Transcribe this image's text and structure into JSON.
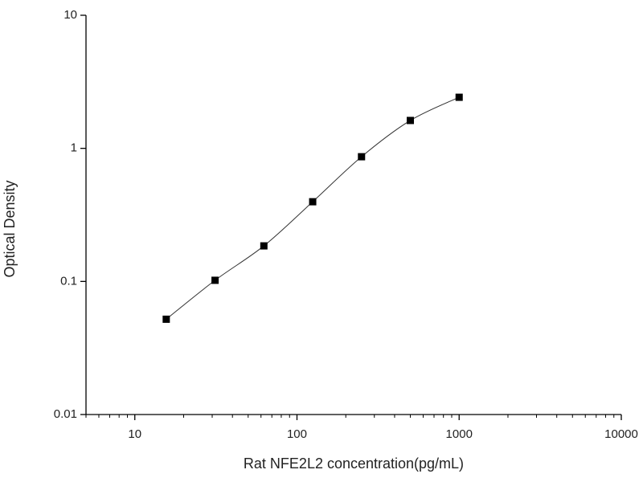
{
  "chart_data": {
    "type": "scatter",
    "x_label": "Rat NFE2L2 concentration(pg/mL)",
    "y_label": "Optical Density",
    "x": [
      15.625,
      31.25,
      62.5,
      125,
      250,
      500,
      1000
    ],
    "values": [
      0.052,
      0.102,
      0.185,
      0.397,
      0.865,
      1.62,
      2.42
    ],
    "color": "#000000",
    "fit_line": true,
    "xscale": "log",
    "yscale": "log",
    "xlim": [
      5,
      10000
    ],
    "ylim": [
      0.01,
      10
    ],
    "xticks": [
      10,
      100,
      1000,
      10000
    ],
    "xminorticks": [
      5,
      6,
      7,
      8,
      9,
      20,
      30,
      40,
      50,
      60,
      70,
      80,
      90,
      200,
      300,
      400,
      500,
      600,
      700,
      800,
      900,
      2000,
      3000,
      4000,
      5000,
      6000,
      7000,
      8000,
      9000
    ],
    "yticks": [
      0.01,
      0.1,
      1,
      10
    ]
  }
}
